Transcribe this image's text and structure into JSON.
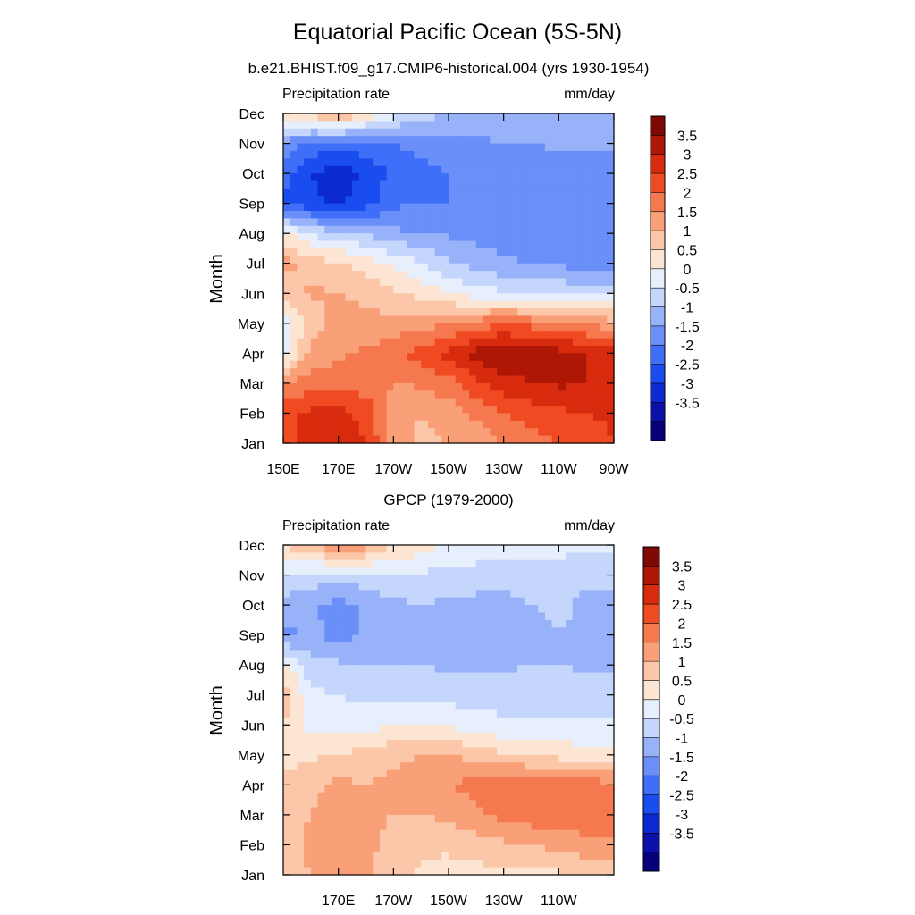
{
  "page_title": "Equatorial Pacific Ocean (5S-5N)",
  "chart_data": [
    {
      "type": "heatmap",
      "panel": "top",
      "title": "b.e21.BHIST.f09_g17.CMIP6-historical.004 (yrs 1930-1954)",
      "left_label": "Precipitation rate",
      "right_label": "mm/day",
      "ylabel": "Month",
      "xlabel": "",
      "x_ticks": [
        "150E",
        "170E",
        "170W",
        "150W",
        "130W",
        "110W",
        "90W"
      ],
      "x_tick_lon": [
        150,
        170,
        190,
        210,
        230,
        250,
        270
      ],
      "y_ticks": [
        "Jan",
        "Feb",
        "Mar",
        "Apr",
        "May",
        "Jun",
        "Jul",
        "Aug",
        "Sep",
        "Oct",
        "Nov",
        "Dec"
      ],
      "xlim": [
        150,
        270
      ],
      "ylim": [
        1,
        12
      ],
      "colorbar": {
        "labels": [
          "3.5",
          "3",
          "2.5",
          "2",
          "1.5",
          "1",
          "0.5",
          "0",
          "-0.5",
          "-1",
          "-1.5",
          "-2",
          "-2.5",
          "-3",
          "-3.5"
        ],
        "range": [
          -4,
          4
        ],
        "step": 0.5
      },
      "lon": [
        150,
        160,
        170,
        180,
        190,
        200,
        210,
        220,
        230,
        240,
        250,
        260,
        270
      ],
      "values": [
        [
          2.2,
          2.9,
          3.0,
          2.5,
          1.3,
          0.9,
          1.0,
          1.2,
          1.5,
          1.8,
          2.0,
          2.2,
          2.5
        ],
        [
          2.3,
          2.6,
          2.7,
          2.3,
          1.1,
          1.0,
          1.2,
          1.6,
          2.0,
          2.2,
          2.4,
          2.5,
          2.6
        ],
        [
          1.4,
          1.8,
          1.7,
          1.8,
          1.5,
          1.6,
          1.8,
          2.4,
          2.8,
          3.0,
          3.1,
          3.0,
          2.7
        ],
        [
          -0.3,
          1.2,
          1.4,
          1.6,
          1.9,
          2.2,
          2.7,
          3.2,
          3.6,
          3.3,
          3.2,
          3.0,
          2.9
        ],
        [
          -0.2,
          0.6,
          1.3,
          1.1,
          1.2,
          1.3,
          1.4,
          1.7,
          1.9,
          1.8,
          1.6,
          1.4,
          1.2
        ],
        [
          0.6,
          1.1,
          1.0,
          0.9,
          0.6,
          0.3,
          0.0,
          -0.3,
          -0.4,
          -0.5,
          -0.6,
          -0.7,
          -0.6
        ],
        [
          1.2,
          0.8,
          0.6,
          0.3,
          -0.1,
          -0.5,
          -0.9,
          -1.2,
          -1.4,
          -1.5,
          -1.6,
          -1.8,
          -1.9
        ],
        [
          0.2,
          -0.6,
          -0.9,
          -1.1,
          -1.4,
          -1.5,
          -1.6,
          -1.7,
          -1.8,
          -1.8,
          -1.9,
          -2.0,
          -2.0
        ],
        [
          -2.6,
          -2.9,
          -3.1,
          -2.7,
          -2.1,
          -2.0,
          -2.0,
          -2.0,
          -2.0,
          -2.0,
          -2.0,
          -2.0,
          -2.0
        ],
        [
          -2.2,
          -3.0,
          -3.3,
          -2.9,
          -2.4,
          -2.2,
          -2.0,
          -1.9,
          -1.9,
          -1.9,
          -1.9,
          -1.9,
          -1.9
        ],
        [
          -1.7,
          -2.1,
          -2.2,
          -2.2,
          -2.0,
          -1.8,
          -1.7,
          -1.6,
          -1.5,
          -1.5,
          -1.4,
          -1.4,
          -1.3
        ],
        [
          0.4,
          0.8,
          1.1,
          0.6,
          -0.3,
          -0.8,
          -1.0,
          -1.1,
          -1.2,
          -1.2,
          -1.2,
          -1.2,
          -1.1
        ]
      ]
    },
    {
      "type": "heatmap",
      "panel": "bottom",
      "title": "GPCP (1979-2000)",
      "left_label": "Precipitation rate",
      "right_label": "mm/day",
      "ylabel": "Month",
      "xlabel": "",
      "x_ticks": [
        "170E",
        "170W",
        "150W",
        "130W",
        "110W"
      ],
      "x_tick_lon": [
        170,
        190,
        210,
        230,
        250
      ],
      "y_ticks": [
        "Jan",
        "Feb",
        "Mar",
        "Apr",
        "May",
        "Jun",
        "Jul",
        "Aug",
        "Sep",
        "Oct",
        "Nov",
        "Dec"
      ],
      "xlim": [
        150,
        270
      ],
      "ylim": [
        1,
        12
      ],
      "colorbar": {
        "labels": [
          "3.5",
          "3",
          "2.5",
          "2",
          "1.5",
          "1",
          "0.5",
          "0",
          "-0.5",
          "-1",
          "-1.5",
          "-2",
          "-2.5",
          "-3",
          "-3.5"
        ],
        "range": [
          -4,
          4
        ],
        "step": 0.5
      },
      "lon": [
        150,
        160,
        170,
        180,
        190,
        200,
        210,
        220,
        230,
        240,
        250,
        260,
        270
      ],
      "values": [
        [
          0.8,
          1.0,
          1.6,
          1.1,
          0.6,
          0.4,
          0.3,
          0.3,
          0.3,
          0.4,
          0.4,
          0.4,
          0.5
        ],
        [
          0.8,
          1.1,
          1.2,
          1.2,
          0.8,
          0.6,
          0.6,
          0.8,
          0.9,
          1.0,
          1.2,
          1.4,
          1.5
        ],
        [
          0.7,
          1.0,
          1.2,
          1.1,
          1.0,
          1.0,
          1.1,
          1.4,
          1.7,
          1.8,
          1.9,
          1.7,
          1.5
        ],
        [
          0.7,
          0.9,
          1.1,
          1.0,
          1.1,
          1.2,
          1.5,
          1.7,
          2.0,
          1.8,
          2.0,
          1.8,
          1.6
        ],
        [
          0.2,
          0.4,
          0.5,
          0.7,
          0.9,
          1.0,
          1.0,
          0.8,
          0.6,
          0.4,
          0.3,
          0.2,
          0.1
        ],
        [
          0.5,
          -0.2,
          -0.3,
          -0.2,
          0.0,
          0.0,
          -0.1,
          -0.3,
          -0.4,
          -0.4,
          -0.4,
          -0.4,
          -0.4
        ],
        [
          0.8,
          -0.4,
          -0.5,
          -0.6,
          -0.6,
          -0.6,
          -0.7,
          -0.7,
          -0.7,
          -0.7,
          -0.7,
          -0.8,
          -0.8
        ],
        [
          0.3,
          -0.8,
          -0.9,
          -1.0,
          -1.0,
          -1.0,
          -1.1,
          -1.1,
          -1.1,
          -1.0,
          -1.0,
          -1.1,
          -1.1
        ],
        [
          -1.7,
          -1.3,
          -1.8,
          -1.4,
          -1.2,
          -1.1,
          -1.1,
          -1.2,
          -1.3,
          -1.2,
          -1.0,
          -1.1,
          -1.1
        ],
        [
          -1.2,
          -1.4,
          -1.7,
          -1.4,
          -1.1,
          -1.0,
          -1.1,
          -1.2,
          -1.2,
          -1.0,
          -0.9,
          -1.1,
          -1.1
        ],
        [
          -0.6,
          -0.7,
          -0.8,
          -0.7,
          -0.6,
          -0.6,
          -0.6,
          -0.7,
          -0.7,
          -0.8,
          -0.8,
          -0.9,
          -0.9
        ],
        [
          0.6,
          0.9,
          1.6,
          1.3,
          0.5,
          0.3,
          -0.1,
          -0.2,
          -0.2,
          -0.3,
          -0.3,
          -0.4,
          -0.4
        ]
      ]
    }
  ]
}
